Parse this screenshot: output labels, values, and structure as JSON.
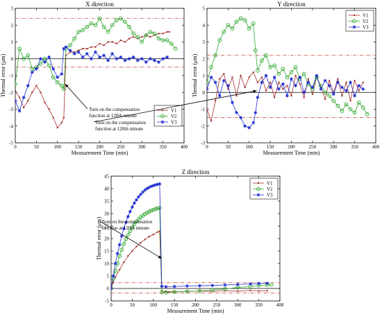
{
  "chart_data": [
    {
      "id": "x",
      "type": "line",
      "title": "X direction",
      "xlabel": "Measurement Time (min)",
      "ylabel": "Thermal error (μm)",
      "xlim": [
        0,
        400
      ],
      "ylim": [
        -5,
        3
      ],
      "xticks": [
        0,
        50,
        100,
        150,
        200,
        250,
        300,
        350,
        400
      ],
      "yticks": [
        -5,
        -4,
        -3,
        -2,
        -1,
        0,
        1,
        2,
        3
      ],
      "thresholds": [
        2.4,
        -0.5
      ],
      "zero_line": true,
      "legend_position": "bottom-right",
      "annotation": {
        "lines": [
          "Turn on the compensation",
          "function at 120th minute"
        ],
        "point": {
          "x": 118,
          "y": -1.5
        }
      },
      "series": [
        {
          "name": "V1",
          "color": "#a0302a",
          "marker": "dot",
          "x": [
            0,
            10,
            20,
            30,
            40,
            50,
            60,
            70,
            80,
            90,
            100,
            110,
            115,
            120,
            130,
            140,
            150,
            160,
            170,
            180,
            190,
            200,
            210,
            220,
            230,
            240,
            250,
            260,
            270,
            280,
            290,
            300,
            310,
            320,
            330,
            340,
            350,
            360,
            365
          ],
          "y": [
            -1.9,
            -2.3,
            -2.9,
            -2.5,
            -2.0,
            -1.6,
            -2.0,
            -2.6,
            -3.0,
            -3.5,
            -4.1,
            -3.8,
            -3.5,
            0.2,
            0.4,
            0.4,
            0.5,
            0.6,
            0.6,
            0.7,
            0.7,
            0.9,
            0.8,
            1.0,
            1.0,
            0.9,
            1.1,
            1.0,
            1.2,
            1.3,
            1.2,
            1.3,
            1.4,
            1.3,
            1.4,
            1.5,
            1.5,
            1.6,
            1.6
          ]
        },
        {
          "name": "V2",
          "color": "#2fa82f",
          "marker": "circle",
          "x": [
            0,
            10,
            20,
            30,
            40,
            50,
            60,
            70,
            80,
            90,
            100,
            110,
            115,
            120,
            130,
            140,
            150,
            160,
            170,
            180,
            190,
            200,
            210,
            220,
            230,
            240,
            250,
            260,
            270,
            280,
            290,
            300,
            310,
            320,
            330,
            340,
            350,
            360,
            370,
            380
          ],
          "y": [
            -1.5,
            0.6,
            0.0,
            0.2,
            -0.6,
            -0.5,
            -0.3,
            0.0,
            -0.4,
            -1.1,
            -1.4,
            -1.6,
            -1.8,
            0.6,
            0.8,
            1.2,
            1.6,
            1.7,
            1.9,
            2.1,
            2.0,
            2.4,
            1.9,
            1.6,
            2.0,
            2.3,
            2.4,
            2.2,
            1.9,
            1.5,
            1.3,
            1.0,
            1.4,
            1.6,
            1.5,
            1.2,
            1.1,
            1.1,
            0.9,
            0.6
          ]
        },
        {
          "name": "V3",
          "color": "#1f2fd0",
          "marker": "star",
          "x": [
            0,
            10,
            20,
            30,
            40,
            50,
            60,
            70,
            80,
            90,
            100,
            110,
            115,
            120,
            130,
            140,
            150,
            160,
            170,
            180,
            190,
            200,
            210,
            220,
            230,
            240,
            250,
            260,
            270,
            280,
            290,
            300,
            310,
            320,
            330,
            340,
            350,
            360
          ],
          "y": [
            -2.5,
            -3.1,
            -2.3,
            -1.6,
            -0.8,
            -0.6,
            0.0,
            -0.2,
            0.1,
            -0.6,
            -1.1,
            -0.9,
            0.6,
            0.7,
            0.5,
            0.3,
            0.4,
            0.1,
            0.3,
            0.0,
            0.4,
            0.1,
            0.2,
            -0.1,
            0.3,
            0.0,
            0.1,
            -0.1,
            0.0,
            0.1,
            -0.1,
            0.0,
            -0.2,
            0.0,
            -0.1,
            -0.2,
            0.0,
            0.1
          ]
        }
      ]
    },
    {
      "id": "y",
      "type": "line",
      "title": "Y direction",
      "xlabel": "Measurement Time (min)",
      "ylabel": "Thermal error (μm)",
      "xlim": [
        0,
        400
      ],
      "ylim": [
        -3,
        5
      ],
      "xticks": [
        0,
        50,
        100,
        150,
        200,
        250,
        300,
        350,
        400
      ],
      "yticks": [
        -3,
        -2,
        -1,
        0,
        1,
        2,
        3,
        4,
        5
      ],
      "thresholds": [
        2.2,
        -1.5
      ],
      "zero_line": true,
      "legend_position": "top-right",
      "annotation": {
        "lines": [
          "Turn on the compensation",
          "function at 120th minute"
        ],
        "point": {
          "x": 118,
          "y": 0.1
        }
      },
      "series": [
        {
          "name": "V1",
          "color": "#a0302a",
          "marker": "dot",
          "x": [
            0,
            10,
            20,
            30,
            40,
            50,
            60,
            70,
            80,
            90,
            100,
            110,
            120,
            130,
            140,
            150,
            160,
            170,
            180,
            190,
            200,
            210,
            220,
            230,
            240,
            250,
            260,
            270,
            280,
            290,
            300,
            310,
            320,
            330,
            340,
            350,
            360,
            370
          ],
          "y": [
            -1.0,
            -1.7,
            -0.5,
            0.8,
            1.1,
            0.2,
            0.9,
            -0.2,
            1.0,
            0.3,
            0.9,
            1.2,
            0.6,
            0.9,
            0.1,
            0.6,
            -0.3,
            0.6,
            0.2,
            0.4,
            -0.2,
            1.0,
            0.5,
            -0.3,
            0.8,
            -0.1,
            0.9,
            0.3,
            -0.4,
            0.7,
            0.0,
            0.8,
            -0.2,
            0.6,
            -0.5,
            0.7,
            0.1,
            0.6
          ]
        },
        {
          "name": "V2",
          "color": "#2fa82f",
          "marker": "circle",
          "x": [
            0,
            10,
            20,
            30,
            40,
            50,
            60,
            70,
            80,
            90,
            100,
            110,
            115,
            120,
            130,
            140,
            150,
            160,
            170,
            180,
            190,
            200,
            210,
            220,
            230,
            240,
            250,
            260,
            270,
            280,
            290,
            300,
            310,
            320,
            330,
            340,
            350,
            360,
            370,
            380
          ],
          "y": [
            0.6,
            1.5,
            2.2,
            3.1,
            3.6,
            4.0,
            3.8,
            4.2,
            4.4,
            4.3,
            3.8,
            4.1,
            2.5,
            1.3,
            1.9,
            2.2,
            1.5,
            1.6,
            1.1,
            1.4,
            0.9,
            1.2,
            1.5,
            0.8,
            1.1,
            0.5,
            0.2,
            0.9,
            0.4,
            0.0,
            -0.2,
            -0.5,
            -0.8,
            -1.1,
            -0.7,
            -1.0,
            -1.2,
            -0.6,
            -0.9,
            -1.3
          ]
        },
        {
          "name": "V3",
          "color": "#1f2fd0",
          "marker": "star",
          "x": [
            0,
            10,
            20,
            30,
            40,
            50,
            60,
            70,
            80,
            90,
            100,
            110,
            115,
            120,
            130,
            140,
            150,
            160,
            170,
            180,
            190,
            200,
            210,
            220,
            230,
            240,
            250,
            260,
            270,
            280,
            290,
            300,
            310,
            320,
            330,
            340,
            350,
            360,
            370
          ],
          "y": [
            0.2,
            0.9,
            0.6,
            -0.2,
            0.7,
            0.4,
            -0.6,
            -1.2,
            -1.5,
            -2.0,
            -2.1,
            -1.8,
            -1.2,
            -0.3,
            0.6,
            1.0,
            0.3,
            0.9,
            0.2,
            0.5,
            -0.2,
            0.8,
            0.4,
            0.9,
            0.0,
            0.6,
            0.3,
            1.0,
            0.2,
            0.7,
            0.4,
            -0.1,
            0.6,
            0.3,
            0.1,
            0.6,
            -0.2,
            0.4,
            0.2
          ]
        }
      ]
    },
    {
      "id": "z",
      "type": "line",
      "title": "Z direction",
      "xlabel": "Measurement Time (min)",
      "ylabel": "Thermal error (μm)",
      "xlim": [
        0,
        400
      ],
      "ylim": [
        -5,
        45
      ],
      "xticks": [
        0,
        50,
        100,
        150,
        200,
        250,
        300,
        350,
        400
      ],
      "yticks": [
        -5,
        0,
        5,
        10,
        15,
        20,
        25,
        30,
        35,
        40,
        45
      ],
      "thresholds": [
        2.3,
        -1.8
      ],
      "zero_line": true,
      "legend_position": "top-right",
      "annotation": {
        "lines": [
          "Turn on the compensation",
          "function at 120th minute"
        ],
        "point": {
          "x": 120,
          "y": 12
        }
      },
      "series": [
        {
          "name": "V1",
          "color": "#a0302a",
          "marker": "dot",
          "x": [
            0,
            5,
            10,
            20,
            30,
            40,
            50,
            60,
            70,
            80,
            90,
            100,
            110,
            115,
            120,
            130,
            150,
            180,
            210,
            240,
            270,
            300,
            330,
            350,
            370
          ],
          "y": [
            0,
            2.5,
            4.5,
            7.5,
            10.5,
            13.0,
            15.0,
            16.8,
            18.3,
            19.6,
            20.8,
            21.6,
            22.6,
            23.0,
            -1.0,
            -1.2,
            -1.3,
            -1.2,
            -1.0,
            -1.2,
            -0.9,
            -1.1,
            -0.8,
            -1.0,
            -0.9
          ]
        },
        {
          "name": "V2",
          "color": "#2fa82f",
          "marker": "circle",
          "x": [
            0,
            5,
            10,
            15,
            20,
            25,
            30,
            35,
            40,
            45,
            50,
            55,
            60,
            65,
            70,
            75,
            80,
            85,
            90,
            95,
            100,
            105,
            110,
            115,
            120,
            130,
            150,
            180,
            210,
            240,
            270,
            300,
            330,
            350,
            370,
            380
          ],
          "y": [
            0,
            4.0,
            7.0,
            10.0,
            13.0,
            15.5,
            17.8,
            19.8,
            21.5,
            23.0,
            24.5,
            25.8,
            26.8,
            27.7,
            28.5,
            29.2,
            29.8,
            30.3,
            30.8,
            31.2,
            31.5,
            31.8,
            32.1,
            32.3,
            -1.5,
            -1.6,
            -1.4,
            -1.2,
            -1.0,
            -0.6,
            -0.2,
            0.4,
            0.8,
            1.2,
            1.4,
            1.5
          ]
        },
        {
          "name": "V3",
          "color": "#1f2fd0",
          "marker": "star",
          "x": [
            0,
            5,
            10,
            15,
            20,
            25,
            30,
            35,
            40,
            45,
            50,
            55,
            60,
            65,
            70,
            75,
            80,
            85,
            90,
            95,
            100,
            105,
            110,
            115,
            120,
            130,
            150,
            180,
            210,
            240,
            270,
            300,
            330,
            350,
            370
          ],
          "y": [
            0,
            5.0,
            10.0,
            14.0,
            17.5,
            21.0,
            24.0,
            26.5,
            28.8,
            30.8,
            32.6,
            34.2,
            35.5,
            36.7,
            37.7,
            38.6,
            39.4,
            40.0,
            40.5,
            40.9,
            41.2,
            41.5,
            41.7,
            41.9,
            0.9,
            0.7,
            0.8,
            1.0,
            1.1,
            1.2,
            1.4,
            1.6,
            1.8,
            2.0,
            2.1
          ]
        }
      ]
    }
  ]
}
